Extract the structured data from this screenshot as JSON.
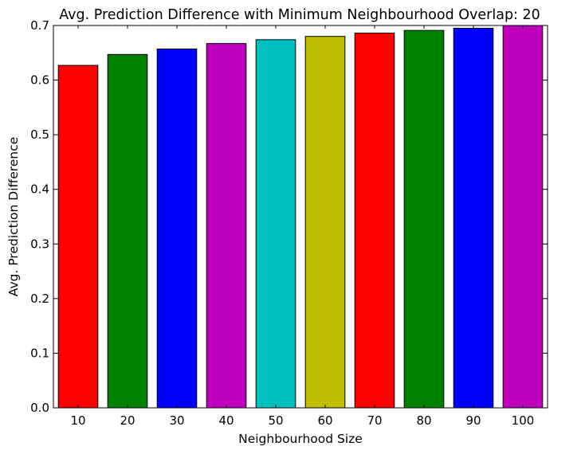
{
  "chart_data": {
    "type": "bar",
    "title": "Avg. Prediction Difference with Minimum Neighbourhood Overlap: 20",
    "xlabel": "Neighbourhood Size",
    "ylabel": "Avg. Prediction Difference",
    "categories": [
      "10",
      "20",
      "30",
      "40",
      "50",
      "60",
      "70",
      "80",
      "90",
      "100"
    ],
    "values": [
      0.627,
      0.647,
      0.657,
      0.667,
      0.674,
      0.68,
      0.686,
      0.691,
      0.695,
      0.7
    ],
    "bar_colors": [
      "#ff0000",
      "#008000",
      "#0000ff",
      "#bf00bf",
      "#00bfbf",
      "#bfbf00",
      "#ff0000",
      "#008000",
      "#0000ff",
      "#bf00bf"
    ],
    "ylim": [
      0.0,
      0.7
    ],
    "yticks": [
      "0.0",
      "0.1",
      "0.2",
      "0.3",
      "0.4",
      "0.5",
      "0.6",
      "0.7"
    ],
    "grid": false,
    "legend": "none"
  }
}
